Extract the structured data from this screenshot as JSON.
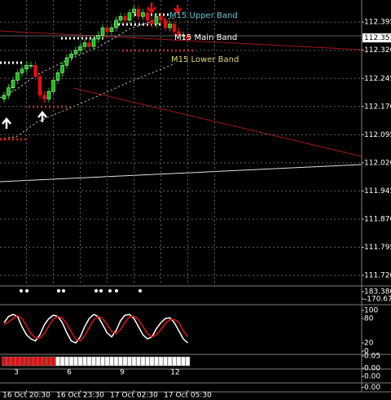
{
  "chart_data": [
    {
      "type": "candlestick",
      "categories": [
        null,
        null,
        null,
        null,
        null,
        "16 Oct 20:30",
        null,
        null,
        null,
        null,
        null,
        null,
        null,
        null,
        null,
        null,
        null,
        "16 Oct 23:30",
        null,
        null,
        null,
        null,
        null,
        null,
        null,
        null,
        null,
        null,
        null,
        "17 Oct 02:30",
        null,
        null,
        null,
        null,
        null,
        null,
        null,
        null,
        null,
        null,
        null,
        "17 Oct 05:30"
      ],
      "open": [
        112.19,
        112.2,
        112.22,
        112.24,
        112.26,
        112.27,
        112.28,
        112.28,
        112.25,
        112.2,
        112.19,
        112.21,
        112.24,
        112.26,
        112.28,
        112.3,
        112.31,
        112.32,
        112.33,
        112.34,
        112.33,
        112.35,
        112.36,
        112.38,
        112.37,
        112.38,
        112.4,
        112.41,
        112.4,
        112.42,
        112.43,
        112.41,
        112.42,
        112.4,
        112.39,
        112.41,
        112.4,
        112.38,
        112.39,
        112.37,
        112.36,
        112.36
      ],
      "high": [
        112.21,
        112.23,
        112.25,
        112.27,
        112.28,
        112.29,
        112.29,
        112.29,
        112.26,
        112.21,
        112.22,
        112.25,
        112.27,
        112.29,
        112.31,
        112.32,
        112.33,
        112.34,
        112.35,
        112.35,
        112.36,
        112.37,
        112.39,
        112.39,
        112.39,
        112.41,
        112.42,
        112.42,
        112.43,
        112.44,
        112.44,
        112.43,
        112.43,
        112.41,
        112.42,
        112.42,
        112.41,
        112.4,
        112.4,
        112.38,
        112.37,
        112.37
      ],
      "low": [
        112.18,
        112.19,
        112.21,
        112.23,
        112.25,
        112.26,
        112.27,
        112.24,
        112.19,
        112.18,
        112.18,
        112.2,
        112.23,
        112.25,
        112.27,
        112.29,
        112.3,
        112.31,
        112.32,
        112.32,
        112.32,
        112.34,
        112.35,
        112.36,
        112.36,
        112.37,
        112.39,
        112.39,
        112.39,
        112.41,
        112.4,
        112.4,
        112.39,
        112.38,
        112.38,
        112.39,
        112.37,
        112.37,
        112.36,
        112.35,
        112.35,
        112.34
      ],
      "close": [
        112.2,
        112.22,
        112.24,
        112.26,
        112.27,
        112.28,
        112.28,
        112.25,
        112.2,
        112.19,
        112.21,
        112.24,
        112.26,
        112.28,
        112.3,
        112.31,
        112.32,
        112.33,
        112.34,
        112.33,
        112.35,
        112.36,
        112.38,
        112.37,
        112.38,
        112.4,
        112.41,
        112.4,
        112.42,
        112.43,
        112.41,
        112.42,
        112.4,
        112.39,
        112.41,
        112.4,
        112.38,
        112.39,
        112.37,
        112.36,
        112.36,
        112.35
      ],
      "up_color": "#00c800",
      "down_color": "#e01010",
      "ylim": [
        111.694,
        112.454
      ],
      "yticks": [
        112.395,
        {
          "value": 112.32,
          "label": "112.320"
        },
        112.245,
        {
          "value": 112.17,
          "label": "112.170"
        },
        112.095,
        {
          "value": 112.02,
          "label": "112.020"
        },
        111.945,
        {
          "value": 111.87,
          "label": "111.870"
        },
        111.795,
        {
          "value": 111.72,
          "label": "111.720"
        }
      ],
      "current_price": 112.353,
      "band_labels": [
        "M15 Upper Band",
        "M15 Main Band",
        "M15 Lower Band"
      ],
      "grid": true
    },
    {
      "type": "indicator",
      "ylim": [
        -367,
        419
      ],
      "yticks": [
        {
          "value": 183.38,
          "label": "183.380"
        },
        {
          "value": -170.67,
          "label": "-170.670"
        }
      ]
    },
    {
      "type": "line",
      "ylim": [
        0,
        100
      ],
      "yticks": [
        100,
        80,
        20,
        0
      ],
      "series": [
        {
          "color": "#ffffff",
          "values": [
            70,
            85,
            90,
            85,
            60,
            40,
            30,
            25,
            40,
            65,
            80,
            88,
            85,
            70,
            45,
            25,
            20,
            35,
            60,
            80,
            90,
            85,
            65,
            45,
            35,
            50,
            75,
            88,
            90,
            80,
            60,
            40,
            30,
            35,
            55,
            70,
            80,
            82,
            70,
            50,
            30,
            20
          ]
        },
        {
          "color": "#e01010",
          "values": [
            65,
            72,
            80,
            87,
            80,
            62,
            43,
            32,
            32,
            43,
            62,
            78,
            85,
            81,
            67,
            47,
            30,
            25,
            38,
            58,
            77,
            85,
            80,
            65,
            48,
            43,
            53,
            71,
            84,
            86,
            77,
            60,
            43,
            35,
            40,
            53,
            68,
            77,
            78,
            70,
            50,
            35
          ]
        }
      ]
    },
    {
      "type": "blocks",
      "labels": [
        "3",
        "6",
        "9",
        "12"
      ],
      "ylim": [
        0,
        0.05
      ],
      "yticks": [
        0.05,
        {
          "value": 0,
          "label": "0.00"
        }
      ]
    },
    {
      "type": "empty",
      "ylim": [
        -1,
        1
      ],
      "yticks": [
        {
          "value": 0,
          "label": "0.00"
        }
      ]
    },
    {
      "type": "empty",
      "ylim": [
        -1,
        1
      ],
      "yticks": [
        {
          "value": 0,
          "label": "0.00"
        }
      ]
    }
  ]
}
